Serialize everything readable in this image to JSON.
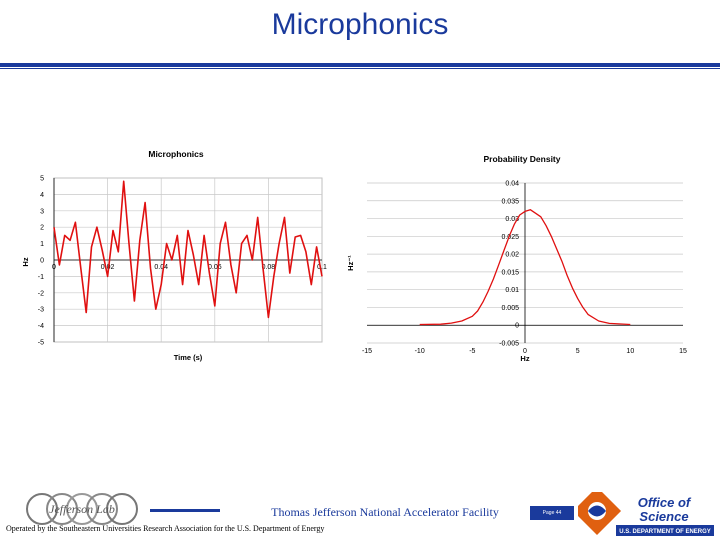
{
  "slide": {
    "title": "Microphonics",
    "footer_center": "Thomas Jefferson National Accelerator Facility",
    "footer_operated": "Operated by the Southeastern Universities Research Association for the U.S. Department of Energy",
    "page_label": "Page 44",
    "logo_left_text": "Jefferson Lab",
    "logo_right_line1": "Office of",
    "logo_right_line2": "Science",
    "logo_right_line3": "U.S. DEPARTMENT OF ENERGY"
  },
  "colors": {
    "title": "#1a3a9c",
    "series": "#e01010",
    "grid": "#c8c8c8"
  },
  "chart_data": [
    {
      "type": "line",
      "title": "Microphonics",
      "xlabel": "Time (s)",
      "ylabel": "Hz",
      "xlim": [
        0,
        0.1
      ],
      "ylim": [
        -5,
        5
      ],
      "x_ticks": [
        "0",
        "0.02",
        "0.04",
        "0.06",
        "0.08",
        "0.1"
      ],
      "y_ticks": [
        "5",
        "4",
        "3",
        "2",
        "1",
        "0",
        "-1",
        "-2",
        "-3",
        "-4",
        "-5"
      ],
      "grid": true,
      "series": [
        {
          "x": [
            0,
            0.002,
            0.004,
            0.006,
            0.008,
            0.01,
            0.012,
            0.014,
            0.016,
            0.018,
            0.02,
            0.022,
            0.024,
            0.026,
            0.028,
            0.03,
            0.032,
            0.034,
            0.036,
            0.038,
            0.04,
            0.042,
            0.044,
            0.046,
            0.048,
            0.05,
            0.052,
            0.054,
            0.056,
            0.058,
            0.06,
            0.062,
            0.064,
            0.066,
            0.068,
            0.07,
            0.072,
            0.074,
            0.076,
            0.078,
            0.08,
            0.082,
            0.084,
            0.086,
            0.088,
            0.09,
            0.092,
            0.094,
            0.096,
            0.098,
            0.1
          ],
          "values": [
            2.0,
            -0.3,
            1.5,
            1.2,
            2.3,
            -0.5,
            -3.2,
            0.8,
            2.0,
            0.6,
            -1.0,
            1.8,
            0.5,
            4.8,
            1.0,
            -2.5,
            1.2,
            3.5,
            -0.5,
            -3.0,
            -1.5,
            1.0,
            0.0,
            1.5,
            -1.5,
            1.8,
            0.3,
            -1.5,
            1.5,
            -0.8,
            -2.8,
            1.0,
            2.3,
            -0.3,
            -2.0,
            1.0,
            1.5,
            0.0,
            2.6,
            -0.5,
            -3.5,
            -1.0,
            1.0,
            2.6,
            -0.8,
            1.4,
            1.5,
            0.5,
            -1.5,
            0.8,
            -1.0
          ]
        }
      ]
    },
    {
      "type": "line",
      "title": "Probability Density",
      "xlabel": "Hz",
      "ylabel": "Hz⁻¹",
      "xlim": [
        -15,
        15
      ],
      "ylim": [
        -0.005,
        0.04
      ],
      "x_ticks": [
        "-15",
        "-10",
        "-5",
        "0",
        "5",
        "10",
        "15"
      ],
      "y_ticks": [
        "0.04",
        "0.035",
        "0.03",
        "0.025",
        "0.02",
        "0.015",
        "0.01",
        "0.005",
        "0",
        "-0.005"
      ],
      "grid": true,
      "series": [
        {
          "x": [
            -10,
            -8,
            -7,
            -6,
            -5,
            -4.5,
            -4,
            -3.5,
            -3,
            -2.5,
            -2,
            -1.5,
            -1,
            -0.5,
            0,
            0.5,
            1,
            1.5,
            2,
            2.5,
            3,
            3.5,
            4,
            4.5,
            5,
            5.5,
            6,
            7,
            8,
            10
          ],
          "values": [
            0.0002,
            0.0003,
            0.0006,
            0.0012,
            0.0025,
            0.004,
            0.0065,
            0.0095,
            0.013,
            0.017,
            0.021,
            0.025,
            0.0285,
            0.031,
            0.032,
            0.0325,
            0.0315,
            0.0305,
            0.028,
            0.025,
            0.0215,
            0.018,
            0.014,
            0.0105,
            0.0075,
            0.005,
            0.003,
            0.0012,
            0.0005,
            0.0002
          ]
        }
      ]
    }
  ]
}
